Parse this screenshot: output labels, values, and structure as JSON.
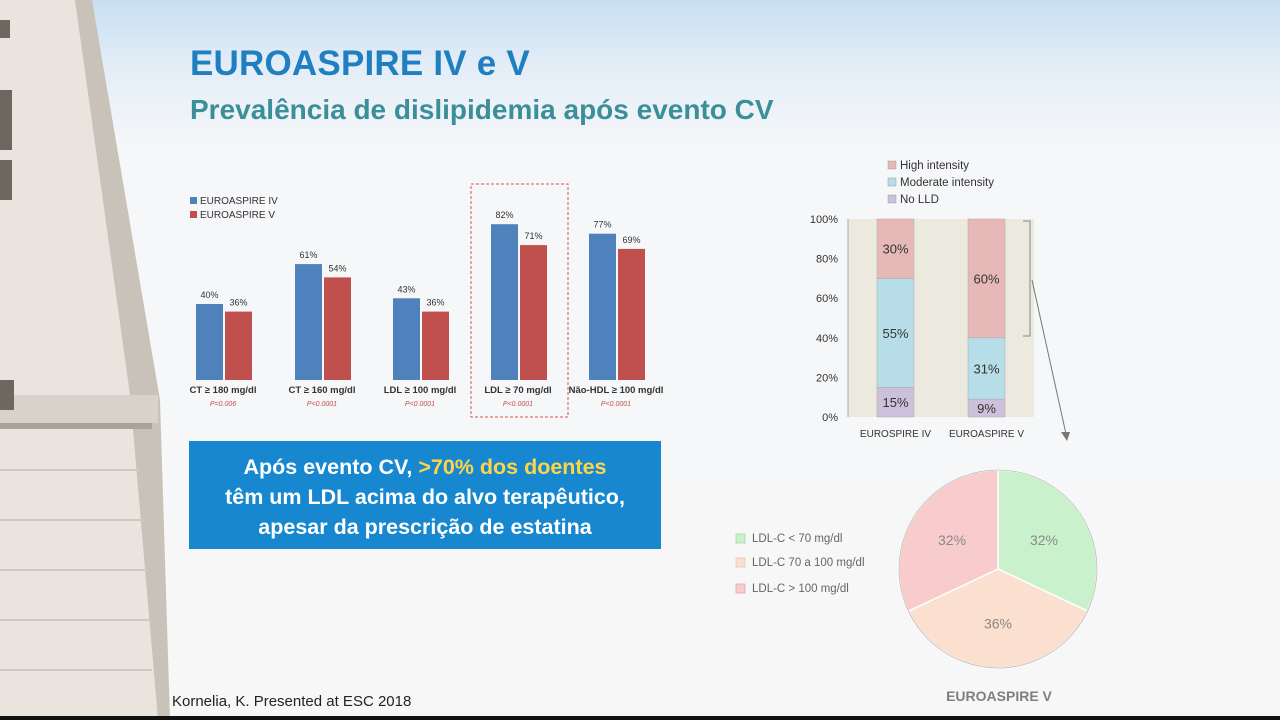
{
  "slide": {
    "title": "EUROASPIRE IV e V",
    "subtitle": "Prevalência de dislipidemia após evento CV",
    "callout": {
      "line1_prefix": "Após evento CV, ",
      "line1_highlight": ">70% dos doentes",
      "line2": "têm um LDL acima do alvo terapêutico,",
      "line3": "apesar da prescrição de estatina"
    },
    "citation": "Kornelia, K. Presented at ESC 2018",
    "colors": {
      "title": "#1f7fc0",
      "subtitle": "#3b8f99",
      "callout_bg": "#1788cf",
      "highlight": "#ffd447"
    }
  },
  "chart_data": [
    {
      "type": "bar",
      "categories": [
        "CT ≥ 180 mg/dl",
        "CT ≥ 160 mg/dl",
        "LDL ≥ 100 mg/dl",
        "LDL ≥ 70 mg/dl",
        "Não-HDL ≥ 100 mg/dl"
      ],
      "pvalues": [
        "P=0.006",
        "P<0.0001",
        "P<0.0001",
        "P<0.0001",
        "P<0.0001"
      ],
      "series": [
        {
          "name": "EUROASPIRE IV",
          "values": [
            40,
            61,
            43,
            82,
            77
          ],
          "labels": [
            "40%",
            "61%",
            "43%",
            "82%",
            "77%"
          ],
          "color": "#4f81bd"
        },
        {
          "name": "EUROASPIRE V",
          "values": [
            36,
            54,
            36,
            71,
            69
          ],
          "labels": [
            "36%",
            "54%",
            "36%",
            "71%",
            "69%"
          ],
          "color": "#c0504d"
        }
      ],
      "highlighted_category": "LDL ≥ 70 mg/dl",
      "ylim": [
        0,
        100
      ],
      "legend": "top-left"
    },
    {
      "type": "bar",
      "stacked": true,
      "categories": [
        "EUROSPIRE IV",
        "EUROASPIRE V"
      ],
      "series": [
        {
          "name": "No LLD",
          "values": [
            15,
            9
          ],
          "labels": [
            "15%",
            "9%"
          ],
          "color": "#ccc1da"
        },
        {
          "name": "Moderate intensity",
          "values": [
            55,
            31
          ],
          "labels": [
            "55%",
            "31%"
          ],
          "color": "#b7dee8"
        },
        {
          "name": "High intensity",
          "values": [
            30,
            60
          ],
          "labels": [
            "30%",
            "60%"
          ],
          "color": "#e6b9b8"
        }
      ],
      "yticks": [
        "0%",
        "20%",
        "40%",
        "60%",
        "80%",
        "100%"
      ],
      "ylim": [
        0,
        100
      ],
      "legend": "top"
    },
    {
      "type": "pie",
      "title": "EUROASPIRE V",
      "slices": [
        {
          "name": "LDL-C < 70 mg/dl",
          "value": 32,
          "label": "32%",
          "color": "#c9f2cc"
        },
        {
          "name": "LDL-C 70 a 100 mg/dl",
          "value": 36,
          "label": "36%",
          "color": "#fbdfcf"
        },
        {
          "name": "LDL-C > 100 mg/dl",
          "value": 32,
          "label": "32%",
          "color": "#f8cccc"
        }
      ],
      "legend": "left"
    }
  ]
}
